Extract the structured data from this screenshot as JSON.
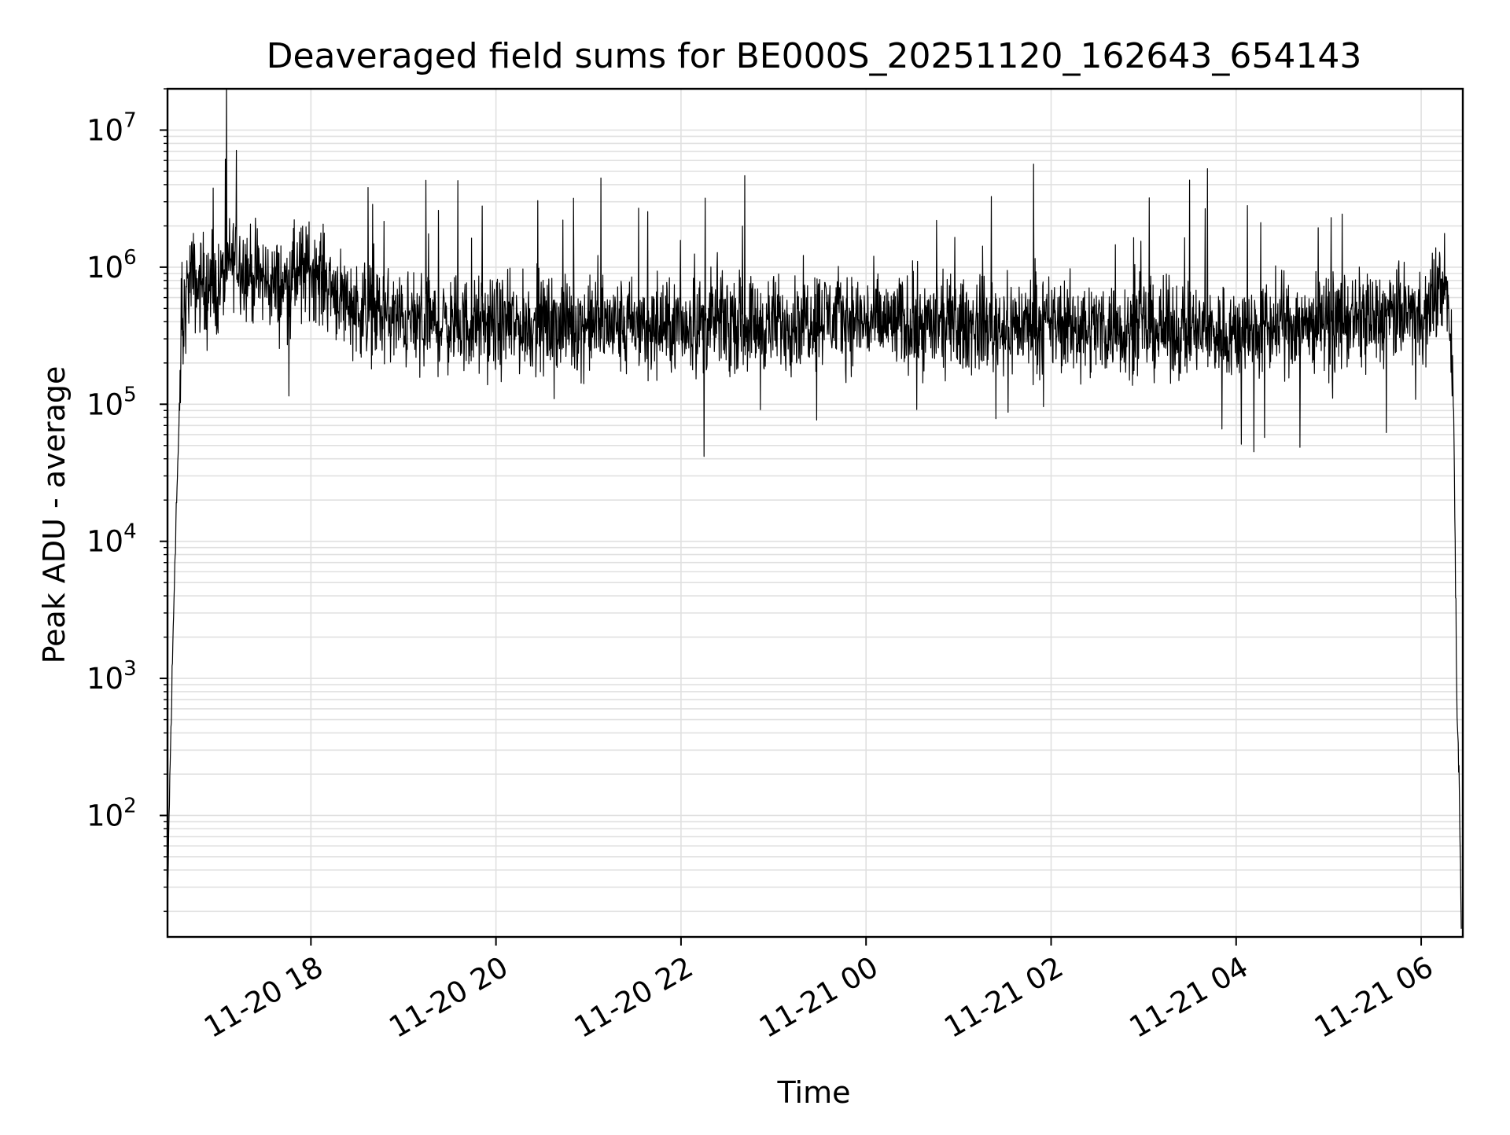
{
  "chart_data": {
    "type": "line",
    "title": "Deaveraged field sums for BE000S_20251120_162643_654143",
    "xlabel": "Time",
    "ylabel": "Peak ADU - average",
    "y_scale": "log",
    "ylim": [
      13,
      20000000
    ],
    "xlim": [
      "2025-11-20T16:27:00",
      "2025-11-21T06:27:00"
    ],
    "x_ticks": [
      {
        "t": "2025-11-20T18:00:00",
        "label": "11-20 18"
      },
      {
        "t": "2025-11-20T20:00:00",
        "label": "11-20 20"
      },
      {
        "t": "2025-11-20T22:00:00",
        "label": "11-20 22"
      },
      {
        "t": "2025-11-21T00:00:00",
        "label": "11-21 00"
      },
      {
        "t": "2025-11-21T02:00:00",
        "label": "11-21 02"
      },
      {
        "t": "2025-11-21T04:00:00",
        "label": "11-21 04"
      },
      {
        "t": "2025-11-21T06:00:00",
        "label": "11-21 06"
      }
    ],
    "y_ticks": [
      {
        "v": 100,
        "base": "10",
        "exp": "2"
      },
      {
        "v": 1000,
        "base": "10",
        "exp": "3"
      },
      {
        "v": 10000,
        "base": "10",
        "exp": "4"
      },
      {
        "v": 100000,
        "base": "10",
        "exp": "5"
      },
      {
        "v": 1000000,
        "base": "10",
        "exp": "6"
      },
      {
        "v": 10000000,
        "base": "10",
        "exp": "7"
      }
    ],
    "grid": true,
    "line_color": "#000000",
    "grid_color": "#e0e0e0",
    "series": [
      {
        "x": [
          "2025-11-20T16:27:00",
          "2025-11-20T16:28:00",
          "2025-11-20T16:30:00",
          "2025-11-20T16:32:00",
          "2025-11-20T16:35:00",
          "2025-11-20T16:38:00",
          "2025-11-20T16:42:00",
          "2025-11-20T16:46:00",
          "2025-11-20T16:50:00",
          "2025-11-20T16:55:00",
          "2025-11-20T17:00:00",
          "2025-11-20T17:10:00",
          "2025-11-20T17:20:00",
          "2025-11-20T17:30:00",
          "2025-11-20T17:40:00",
          "2025-11-20T17:50:00",
          "2025-11-20T18:00:00",
          "2025-11-20T18:15:00",
          "2025-11-20T18:30:00",
          "2025-11-20T18:45:00",
          "2025-11-20T19:00:00",
          "2025-11-20T19:30:00",
          "2025-11-20T20:00:00",
          "2025-11-20T20:30:00",
          "2025-11-20T21:00:00",
          "2025-11-20T21:30:00",
          "2025-11-20T22:00:00",
          "2025-11-20T22:30:00",
          "2025-11-20T23:00:00",
          "2025-11-20T23:30:00",
          "2025-11-21T00:00:00",
          "2025-11-21T00:30:00",
          "2025-11-21T01:00:00",
          "2025-11-21T01:30:00",
          "2025-11-21T02:00:00",
          "2025-11-21T02:30:00",
          "2025-11-21T03:00:00",
          "2025-11-21T03:30:00",
          "2025-11-21T04:00:00",
          "2025-11-21T04:30:00",
          "2025-11-21T05:00:00",
          "2025-11-21T05:30:00",
          "2025-11-21T05:50:00",
          "2025-11-21T06:05:00",
          "2025-11-21T06:12:00",
          "2025-11-21T06:16:00",
          "2025-11-21T06:19:00",
          "2025-11-21T06:21:00",
          "2025-11-21T06:23:00",
          "2025-11-21T06:25:00",
          "2025-11-21T06:26:00"
        ],
        "y": [
          15,
          100,
          1000,
          10000,
          100000,
          500000,
          900000,
          700000,
          800000,
          650000,
          700000,
          1200000,
          900000,
          800000,
          700000,
          900000,
          1000000,
          700000,
          500000,
          450000,
          400000,
          380000,
          370000,
          380000,
          380000,
          370000,
          370000,
          400000,
          380000,
          450000,
          400000,
          380000,
          370000,
          380000,
          380000,
          370000,
          360000,
          340000,
          330000,
          380000,
          400000,
          420000,
          450000,
          500000,
          700000,
          800000,
          300000,
          100000,
          1000,
          100,
          15
        ]
      }
    ]
  }
}
